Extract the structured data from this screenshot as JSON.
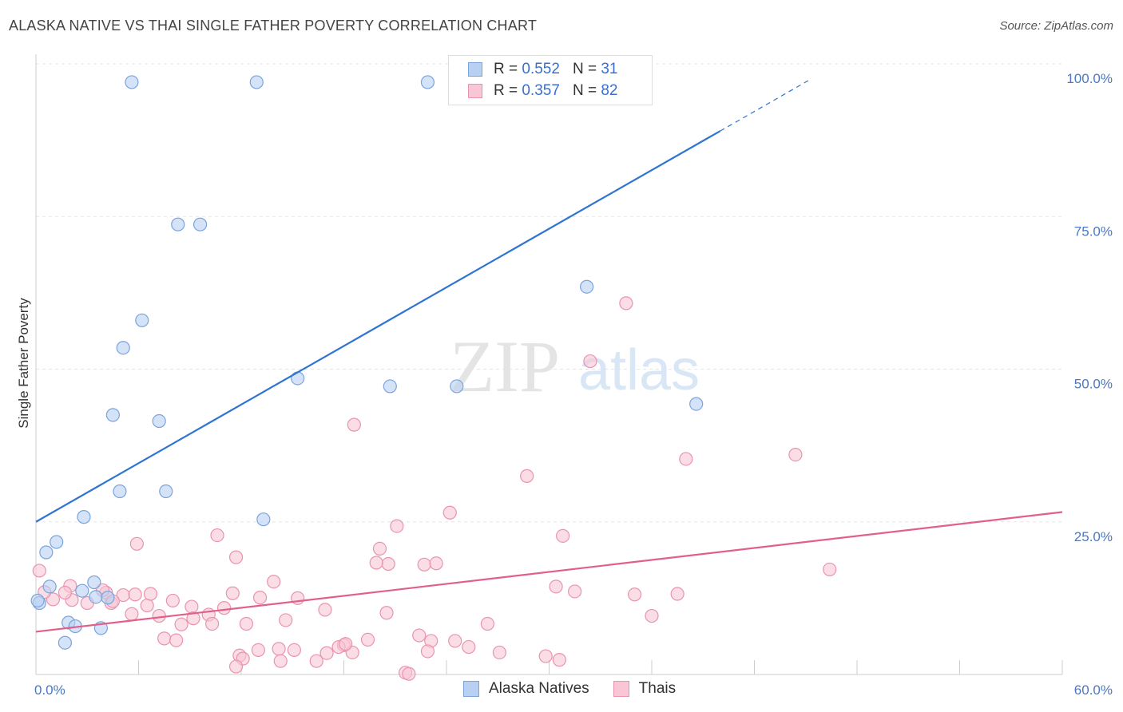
{
  "header": {
    "title": "ALASKA NATIVE VS THAI SINGLE FATHER POVERTY CORRELATION CHART",
    "source": "Source: ZipAtlas.com"
  },
  "watermark": {
    "zip": "ZIP",
    "atlas": "atlas"
  },
  "legend": {
    "rows": [
      {
        "r_label": "R =",
        "r_value": "0.552",
        "n_label": "N =",
        "n_value": "31"
      },
      {
        "r_label": "R =",
        "r_value": "0.357",
        "n_label": "N =",
        "n_value": "82"
      }
    ]
  },
  "colors": {
    "blue_fill": "#b8d0f2",
    "blue_stroke": "#7ba3dc",
    "blue_line": "#2f74d0",
    "pink_fill": "#f8c6d4",
    "pink_stroke": "#e993b0",
    "pink_line": "#e0608a"
  },
  "chart_data": {
    "type": "scatter",
    "title": "ALASKA NATIVE VS THAI SINGLE FATHER POVERTY CORRELATION CHART",
    "xlabel": "",
    "ylabel": "Single Father Poverty",
    "xlim": [
      0,
      60
    ],
    "ylim": [
      0,
      100
    ],
    "x_tick_labels": [
      "0.0%",
      "60.0%"
    ],
    "y_ticks": [
      25,
      50,
      75,
      100
    ],
    "y_tick_labels": [
      "25.0%",
      "50.0%",
      "75.0%",
      "100.0%"
    ],
    "series": [
      {
        "name": "Alaska Natives",
        "points": [
          [
            5.6,
            97
          ],
          [
            12.9,
            97
          ],
          [
            22.9,
            97
          ],
          [
            8.3,
            73.7
          ],
          [
            9.6,
            73.7
          ],
          [
            6.2,
            58
          ],
          [
            5.1,
            53.5
          ],
          [
            4.5,
            42.5
          ],
          [
            7.2,
            41.5
          ],
          [
            15.3,
            48.5
          ],
          [
            20.7,
            47.2
          ],
          [
            24.6,
            47.2
          ],
          [
            32.2,
            63.5
          ],
          [
            38.6,
            44.3
          ],
          [
            4.9,
            30
          ],
          [
            7.6,
            30
          ],
          [
            2.8,
            25.8
          ],
          [
            13.3,
            25.4
          ],
          [
            1.2,
            21.7
          ],
          [
            0.6,
            20
          ],
          [
            3.4,
            15.1
          ],
          [
            0.8,
            14.4
          ],
          [
            2.7,
            13.7
          ],
          [
            3.5,
            12.7
          ],
          [
            4.2,
            12.6
          ],
          [
            0.2,
            11.7
          ],
          [
            1.9,
            8.5
          ],
          [
            2.3,
            7.9
          ],
          [
            3.8,
            7.6
          ],
          [
            1.7,
            5.2
          ],
          [
            0.1,
            12.1
          ]
        ],
        "trend": {
          "x": [
            0,
            40
          ],
          "y": [
            25,
            89
          ]
        },
        "trend_dashed": {
          "x": [
            40,
            45.3
          ],
          "y": [
            89,
            97.5
          ]
        }
      },
      {
        "name": "Thais",
        "points": [
          [
            34.5,
            60.8
          ],
          [
            32.4,
            51.3
          ],
          [
            18.6,
            40.9
          ],
          [
            38,
            35.3
          ],
          [
            44.4,
            36
          ],
          [
            28.7,
            32.5
          ],
          [
            24.2,
            26.5
          ],
          [
            21.1,
            24.3
          ],
          [
            10.6,
            22.8
          ],
          [
            30.8,
            22.7
          ],
          [
            5.9,
            21.4
          ],
          [
            11.7,
            19.2
          ],
          [
            20.1,
            20.6
          ],
          [
            20.6,
            18.1
          ],
          [
            22.7,
            18
          ],
          [
            46.4,
            17.2
          ],
          [
            19.9,
            18.3
          ],
          [
            23.4,
            18.2
          ],
          [
            13.9,
            15.2
          ],
          [
            30.4,
            14.4
          ],
          [
            31.5,
            13.6
          ],
          [
            35,
            13.1
          ],
          [
            37.5,
            13.2
          ],
          [
            11.5,
            13.3
          ],
          [
            13.1,
            12.6
          ],
          [
            15.3,
            12.5
          ],
          [
            8,
            12.1
          ],
          [
            9.1,
            11.1
          ],
          [
            6.5,
            11.3
          ],
          [
            11,
            10.9
          ],
          [
            16.9,
            10.6
          ],
          [
            2.1,
            12.2
          ],
          [
            2,
            14.5
          ],
          [
            4.1,
            13.4
          ],
          [
            5.1,
            13
          ],
          [
            5.8,
            13.1
          ],
          [
            6.7,
            13.2
          ],
          [
            4.4,
            11.7
          ],
          [
            5.6,
            9.9
          ],
          [
            7.2,
            9.6
          ],
          [
            9.2,
            9.2
          ],
          [
            10.1,
            9.8
          ],
          [
            12.3,
            8.3
          ],
          [
            14.6,
            8.9
          ],
          [
            26.4,
            8.3
          ],
          [
            20.5,
            10.1
          ],
          [
            36,
            9.6
          ],
          [
            3,
            11.7
          ],
          [
            1,
            12.3
          ],
          [
            0.2,
            17
          ],
          [
            0.5,
            13.5
          ],
          [
            1.7,
            13.4
          ],
          [
            3.9,
            13.8
          ],
          [
            4.5,
            12
          ],
          [
            8.5,
            8.2
          ],
          [
            10.3,
            8.3
          ],
          [
            7.5,
            5.9
          ],
          [
            8.2,
            5.6
          ],
          [
            14.2,
            4.2
          ],
          [
            15.1,
            4
          ],
          [
            18,
            4.8
          ],
          [
            17,
            3.5
          ],
          [
            16.4,
            2.2
          ],
          [
            19.4,
            5.7
          ],
          [
            22.4,
            6.4
          ],
          [
            24.5,
            5.5
          ],
          [
            23.1,
            5.5
          ],
          [
            18.5,
            3.6
          ],
          [
            25.3,
            4.5
          ],
          [
            22.9,
            3.8
          ],
          [
            27.1,
            3.6
          ],
          [
            13,
            4
          ],
          [
            11.9,
            3.1
          ],
          [
            12.1,
            2.6
          ],
          [
            14.3,
            2.2
          ],
          [
            17.7,
            4.5
          ],
          [
            18.1,
            5
          ],
          [
            21.6,
            0.3
          ],
          [
            21.8,
            0.1
          ],
          [
            11.7,
            1.3
          ],
          [
            30.6,
            2.4
          ],
          [
            29.8,
            3
          ]
        ],
        "trend": {
          "x": [
            0,
            60
          ],
          "y": [
            7,
            26.6
          ]
        }
      }
    ]
  },
  "bottom_legend": {
    "items": [
      {
        "label": "Alaska Natives"
      },
      {
        "label": "Thais"
      }
    ]
  }
}
